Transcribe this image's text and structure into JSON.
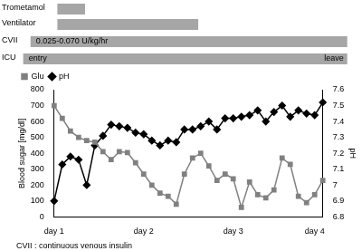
{
  "chart_data": {
    "type": "line",
    "y_label": "Blood sugar [mg/dl]",
    "y2_label": "pH",
    "note": "CVII : continuous venous insulin",
    "categories": [
      "day 1",
      null,
      null,
      null,
      null,
      null,
      null,
      null,
      null,
      null,
      null,
      "day 2",
      null,
      null,
      null,
      null,
      null,
      null,
      null,
      null,
      null,
      null,
      "day 3",
      null,
      null,
      null,
      null,
      null,
      null,
      null,
      null,
      null,
      "day 4",
      null
    ],
    "series": [
      {
        "name": "Glu",
        "color": "#808080",
        "marker": "square",
        "values": [
          700,
          620,
          540,
          500,
          480,
          470,
          410,
          360,
          410,
          405,
          340,
          270,
          200,
          150,
          130,
          80,
          270,
          370,
          400,
          320,
          230,
          270,
          240,
          60,
          220,
          140,
          120,
          170,
          370,
          330,
          130,
          90,
          140,
          230
        ]
      },
      {
        "name": "pH",
        "color": "#000000",
        "marker": "diamond",
        "axis": "y2",
        "values": [
          6.9,
          7.13,
          7.18,
          7.16,
          7.0,
          7.25,
          7.31,
          7.38,
          7.37,
          7.36,
          7.33,
          7.32,
          7.28,
          7.25,
          7.28,
          7.27,
          7.35,
          7.35,
          7.37,
          7.4,
          7.35,
          7.42,
          7.42,
          7.43,
          7.44,
          7.47,
          7.4,
          7.46,
          7.5,
          7.43,
          7.47,
          7.45,
          7.44,
          7.52
        ]
      }
    ],
    "ylim": [
      0,
      800
    ],
    "yticks": [
      0,
      100,
      200,
      300,
      400,
      500,
      600,
      700,
      800
    ],
    "y2lim": [
      6.8,
      7.6
    ],
    "y2ticks": [
      6.8,
      6.9,
      7,
      7.1,
      7.2,
      7.3,
      7.4,
      7.5,
      7.6
    ],
    "grid": false,
    "legend": "top",
    "timeline": [
      {
        "label": "Trometamol",
        "start": 0.4,
        "end": 3.8
      },
      {
        "label": "Ventilator",
        "start": 0.4,
        "end": 17.7
      },
      {
        "label": "CVII",
        "start": -2.9,
        "end": 36,
        "text": "0.025-0.070 U/kg/hr"
      },
      {
        "label": "ICU",
        "start": -3.8,
        "end": 36,
        "start_text": "entry",
        "end_text": "leave"
      }
    ]
  }
}
